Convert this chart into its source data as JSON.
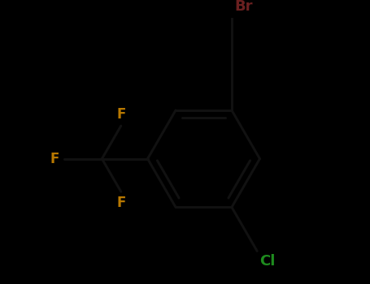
{
  "background_color": "#000000",
  "bond_color": "#111111",
  "bond_width": 2.2,
  "atom_colors": {
    "F": "#b87800",
    "Br": "#6b2020",
    "Cl": "#1e8c1e"
  },
  "figsize": [
    4.55,
    3.5
  ],
  "dpi": 100,
  "xlim": [
    -2.8,
    3.2
  ],
  "ylim": [
    -2.5,
    2.5
  ]
}
